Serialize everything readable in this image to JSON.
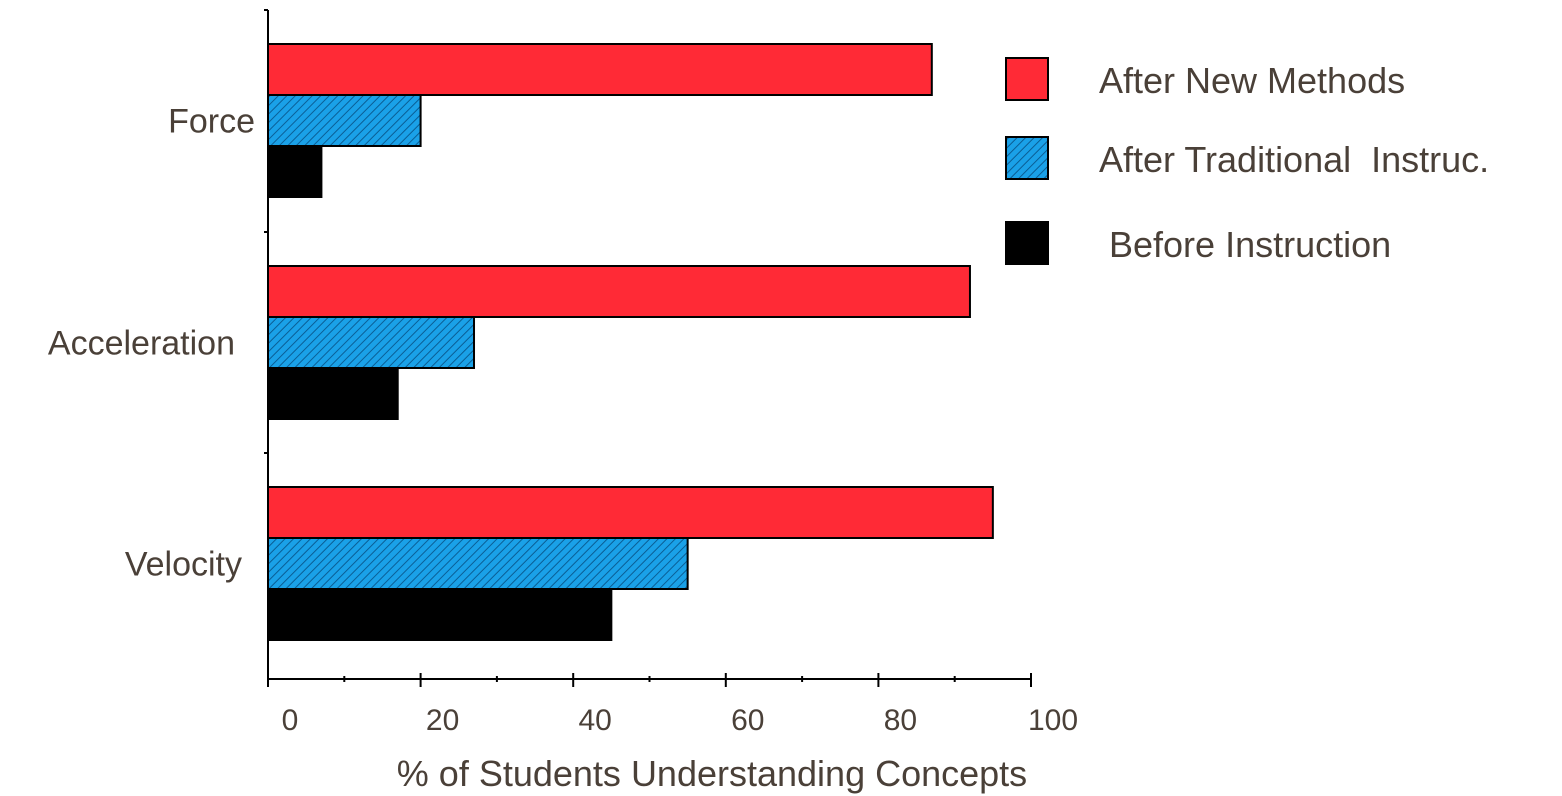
{
  "chart_data": {
    "type": "bar",
    "orientation": "horizontal",
    "categories": [
      "Force",
      "Acceleration",
      "Velocity"
    ],
    "series": [
      {
        "name": "After New Methods",
        "values": [
          87,
          92,
          95
        ],
        "color": "#ff2a36",
        "pattern": "solid"
      },
      {
        "name": "After Traditional  Instruc.",
        "values": [
          20,
          27,
          55
        ],
        "color": "#1aa1e8",
        "pattern": "hatched"
      },
      {
        "name": " Before Instruction",
        "values": [
          7,
          17,
          45
        ],
        "color": "#000000",
        "pattern": "solid"
      }
    ],
    "xlabel": "% of Students Understanding Concepts",
    "ylabel": "",
    "title": "",
    "xlim": [
      0,
      100
    ],
    "xticks": [
      0,
      20,
      40,
      60,
      80,
      100
    ],
    "xtick_labels": [
      "0",
      "20",
      "40",
      "60",
      "80",
      "100"
    ],
    "grid": false,
    "legend_position": "top-right",
    "text_color": "#4a4038"
  }
}
